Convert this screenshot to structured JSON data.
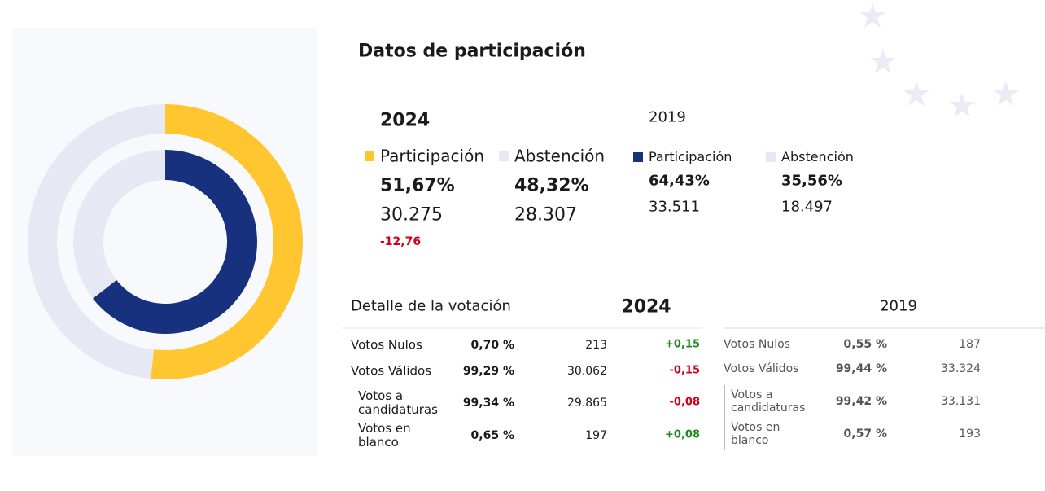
{
  "title": "Datos de participación",
  "participation": [
    {
      "year": "2024",
      "items": [
        {
          "name": "Participación",
          "color": "#ffc62f",
          "share": {
            "value": 51.67,
            "label": "51,67%"
          },
          "count": "30.275",
          "change": "-12,76"
        },
        {
          "name": "Abstención",
          "color": "#e6e9f3",
          "share": {
            "value": 48.32,
            "label": "48,32%"
          },
          "count": "28.307"
        }
      ]
    },
    {
      "year": "2019",
      "items": [
        {
          "name": "Participación",
          "color": "#17317f",
          "share": {
            "value": 64.43,
            "label": "64,43%"
          },
          "count": "33.511"
        },
        {
          "name": "Abstención",
          "color": "#e6e9f3",
          "share": {
            "value": 35.56,
            "label": "35,56%"
          },
          "count": "18.497"
        }
      ]
    }
  ],
  "detail": {
    "title": "Detalle de la votación",
    "tables": [
      {
        "year": "2024",
        "rows": [
          {
            "label": "Votos Nulos",
            "pct": "0,70 %",
            "count": "213",
            "change": "+0,15"
          },
          {
            "label": "Votos Válidos",
            "pct": "99,29 %",
            "count": "30.062",
            "change": "-0,15",
            "children": [
              {
                "label": "Votos a candidaturas",
                "pct": "99,34 %",
                "count": "29.865",
                "change": "-0,08"
              },
              {
                "label": "Votos en blanco",
                "pct": "0,65 %",
                "count": "197",
                "change": "+0,08"
              }
            ]
          }
        ]
      },
      {
        "year": "2019",
        "rows": [
          {
            "label": "Votos Nulos",
            "pct": "0,55 %",
            "count": "187"
          },
          {
            "label": "Votos Válidos",
            "pct": "99,44 %",
            "count": "33.324",
            "children": [
              {
                "label": "Votos a candidaturas",
                "pct": "99,42 %",
                "count": "33.131"
              },
              {
                "label": "Votos en blanco",
                "pct": "0,57 %",
                "count": "193"
              }
            ]
          }
        ]
      }
    ]
  }
}
